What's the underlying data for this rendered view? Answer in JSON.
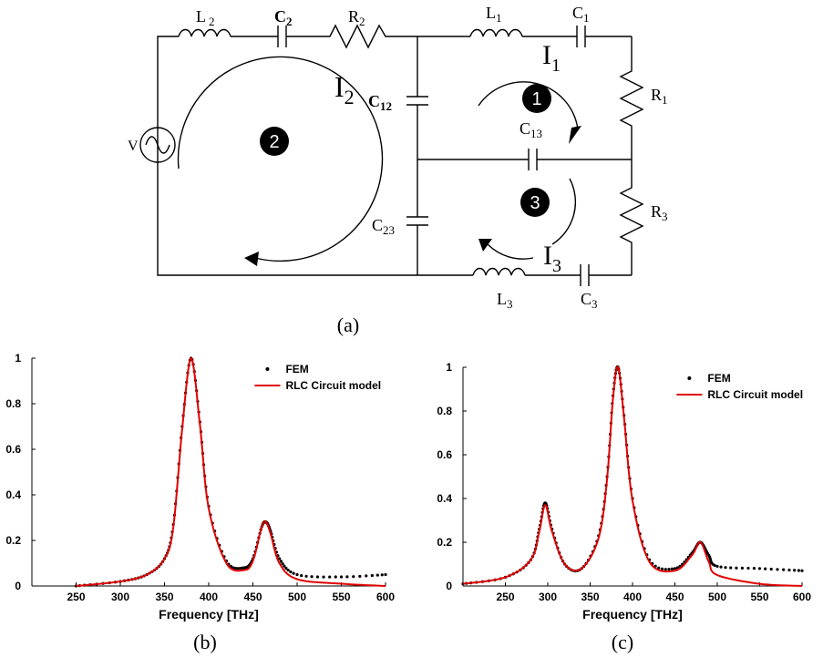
{
  "circuit": {
    "labels": {
      "L2": [
        "L",
        "2"
      ],
      "C2": [
        "C",
        "2"
      ],
      "R2": [
        "R",
        "2"
      ],
      "L1": [
        "L",
        "1"
      ],
      "C1": [
        "C",
        "1"
      ],
      "R1": [
        "R",
        "1"
      ],
      "C12": [
        "C",
        "12"
      ],
      "C13": [
        "C",
        "13"
      ],
      "C23": [
        "C",
        "23"
      ],
      "R3": [
        "R",
        "3"
      ],
      "L3": [
        "L",
        "3"
      ],
      "C3": [
        "C",
        "3"
      ],
      "V": "V",
      "I1": [
        "I",
        "1"
      ],
      "I2": [
        "I",
        "2"
      ],
      "I3": [
        "I",
        "3"
      ]
    },
    "loops": [
      "1",
      "2",
      "3"
    ]
  },
  "captions": {
    "a": "(a)",
    "b": "(b)",
    "c": "(c)"
  },
  "chart_data": [
    {
      "type": "line",
      "xlabel": "Frequency [THz]",
      "xlim": [
        200,
        600
      ],
      "ylim": [
        0,
        1
      ],
      "xticks": [
        250,
        300,
        350,
        400,
        450,
        500,
        550,
        600
      ],
      "yticks": [
        0,
        0.2,
        0.4,
        0.6,
        0.8,
        1
      ],
      "legend": "top-right",
      "x": [
        250,
        300,
        330,
        350,
        360,
        370,
        380,
        390,
        400,
        420,
        440,
        450,
        460,
        465,
        470,
        480,
        500,
        550,
        600
      ],
      "series": [
        {
          "name": "FEM",
          "color": "#000000",
          "style": "dots",
          "values": [
            0.0,
            0.02,
            0.05,
            0.12,
            0.27,
            0.7,
            1.0,
            0.72,
            0.35,
            0.11,
            0.08,
            0.12,
            0.26,
            0.28,
            0.24,
            0.12,
            0.05,
            0.04,
            0.05
          ]
        },
        {
          "name": "RLC Circuit model",
          "color": "#e00000",
          "style": "line",
          "values": [
            0.0,
            0.02,
            0.05,
            0.12,
            0.26,
            0.69,
            1.0,
            0.71,
            0.34,
            0.1,
            0.07,
            0.11,
            0.26,
            0.28,
            0.23,
            0.1,
            0.03,
            0.01,
            0.0
          ]
        }
      ]
    },
    {
      "type": "line",
      "xlabel": "Frequency [THz]",
      "xlim": [
        200,
        600
      ],
      "ylim": [
        0,
        1
      ],
      "xticks": [
        250,
        300,
        350,
        400,
        450,
        500,
        550,
        600
      ],
      "yticks": [
        0,
        0.2,
        0.4,
        0.6,
        0.8,
        1
      ],
      "legend": "top-right",
      "x": [
        200,
        250,
        280,
        290,
        297,
        305,
        320,
        340,
        360,
        370,
        377,
        383,
        390,
        400,
        420,
        450,
        470,
        480,
        490,
        500,
        550,
        600
      ],
      "series": [
        {
          "name": "FEM",
          "color": "#000000",
          "style": "dots",
          "values": [
            0.01,
            0.04,
            0.12,
            0.26,
            0.38,
            0.26,
            0.1,
            0.08,
            0.23,
            0.5,
            0.87,
            1.0,
            0.78,
            0.4,
            0.12,
            0.08,
            0.15,
            0.2,
            0.14,
            0.09,
            0.08,
            0.07
          ]
        },
        {
          "name": "RLC Circuit model",
          "color": "#e00000",
          "style": "line",
          "values": [
            0.01,
            0.04,
            0.12,
            0.25,
            0.37,
            0.25,
            0.1,
            0.08,
            0.22,
            0.49,
            0.86,
            1.0,
            0.77,
            0.39,
            0.11,
            0.07,
            0.14,
            0.2,
            0.11,
            0.05,
            0.01,
            0.0
          ]
        }
      ]
    }
  ]
}
